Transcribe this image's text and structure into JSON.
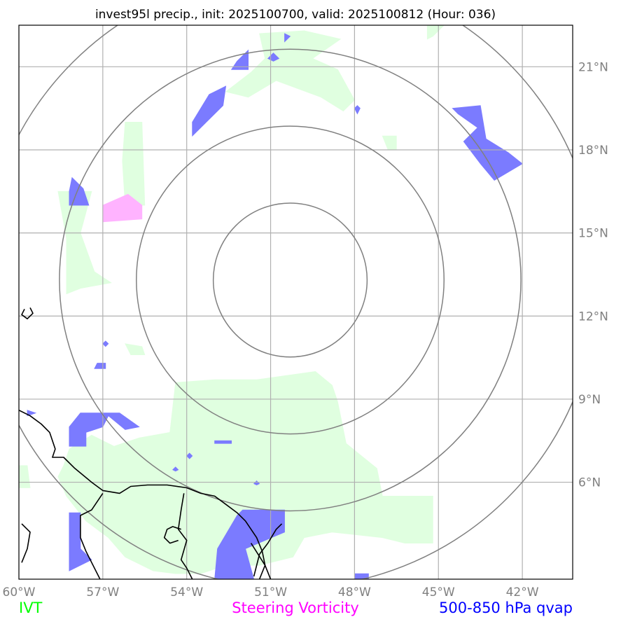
{
  "chart_data": {
    "type": "map",
    "title": "invest95l precip., init: 2025100700, valid: 2025100812 (Hour: 036)",
    "lon_range": [
      -60.0,
      -40.2
    ],
    "lat_range": [
      2.5,
      22.5
    ],
    "lon_ticks": [
      {
        "value": -60,
        "label": "60°W"
      },
      {
        "value": -57,
        "label": "57°W"
      },
      {
        "value": -54,
        "label": "54°W"
      },
      {
        "value": -51,
        "label": "51°W"
      },
      {
        "value": -48,
        "label": "48°W"
      },
      {
        "value": -45,
        "label": "45°W"
      },
      {
        "value": -42,
        "label": "42°W"
      }
    ],
    "lat_ticks": [
      {
        "value": 6,
        "label": "6°N"
      },
      {
        "value": 9,
        "label": "9°N"
      },
      {
        "value": 12,
        "label": "12°N"
      },
      {
        "value": 15,
        "label": "15°N"
      },
      {
        "value": 18,
        "label": "18°N"
      },
      {
        "value": 21,
        "label": "21°N"
      }
    ],
    "grid": true,
    "range_rings": {
      "center_lon": -50.3,
      "center_lat": 13.3,
      "radii_deg": [
        2.75,
        5.5,
        8.25,
        11.0
      ]
    },
    "legend": [
      {
        "label": "IVT",
        "color": "#00ff00"
      },
      {
        "label": "Steering Vorticity",
        "color": "#ff00ff"
      },
      {
        "label": "500-850 hPa qvap",
        "color": "#0000ff"
      }
    ],
    "fields": {
      "ivt": {
        "color": "#e0ffe0",
        "polygons": [
          [
            [
              -51.4,
              22.2
            ],
            [
              -49.8,
              22.3
            ],
            [
              -48.5,
              22.0
            ],
            [
              -49.5,
              21.3
            ],
            [
              -48.6,
              20.9
            ],
            [
              -48.0,
              19.8
            ],
            [
              -48.4,
              19.4
            ],
            [
              -49.2,
              19.9
            ],
            [
              -50.8,
              20.5
            ],
            [
              -51.8,
              19.9
            ],
            [
              -52.6,
              20.1
            ],
            [
              -51.7,
              20.8
            ],
            [
              -51.2,
              21.3
            ]
          ],
          [
            [
              -47.0,
              18.5
            ],
            [
              -46.8,
              18.0
            ],
            [
              -46.5,
              18.0
            ],
            [
              -46.5,
              18.5
            ]
          ],
          [
            [
              -45.4,
              22.5
            ],
            [
              -44.8,
              22.5
            ],
            [
              -45.2,
              22.1
            ],
            [
              -45.4,
              22.0
            ]
          ],
          [
            [
              -56.2,
              19.0
            ],
            [
              -55.6,
              19.0
            ],
            [
              -55.5,
              16.0
            ],
            [
              -56.2,
              16.0
            ],
            [
              -56.3,
              17.6
            ]
          ],
          [
            [
              -58.6,
              16.5
            ],
            [
              -57.4,
              16.5
            ],
            [
              -57.8,
              15.0
            ],
            [
              -57.3,
              13.6
            ],
            [
              -56.7,
              13.2
            ],
            [
              -57.8,
              13.0
            ],
            [
              -58.3,
              12.8
            ],
            [
              -58.3,
              14.8
            ]
          ],
          [
            [
              -56.2,
              11.0
            ],
            [
              -55.6,
              10.9
            ],
            [
              -55.5,
              10.6
            ],
            [
              -56.0,
              10.6
            ]
          ],
          [
            [
              -54.4,
              9.6
            ],
            [
              -53.0,
              9.7
            ],
            [
              -51.5,
              9.7
            ],
            [
              -49.4,
              10.0
            ],
            [
              -48.8,
              9.5
            ],
            [
              -48.6,
              8.9
            ],
            [
              -48.3,
              7.4
            ],
            [
              -47.2,
              6.5
            ],
            [
              -47.0,
              5.5
            ],
            [
              -45.2,
              5.5
            ],
            [
              -45.2,
              3.8
            ],
            [
              -46.2,
              3.8
            ],
            [
              -47.0,
              4.0
            ],
            [
              -48.8,
              4.2
            ],
            [
              -49.8,
              4.0
            ],
            [
              -50.2,
              3.3
            ],
            [
              -51.4,
              3.0
            ],
            [
              -52.6,
              3.0
            ],
            [
              -53.5,
              2.7
            ],
            [
              -54.4,
              2.7
            ],
            [
              -55.2,
              2.8
            ],
            [
              -56.2,
              3.3
            ],
            [
              -56.8,
              4.0
            ],
            [
              -57.6,
              4.6
            ],
            [
              -58.3,
              5.5
            ],
            [
              -58.6,
              6.2
            ],
            [
              -58.4,
              6.6
            ],
            [
              -58.2,
              7.2
            ],
            [
              -57.4,
              7.7
            ],
            [
              -56.6,
              7.3
            ],
            [
              -55.7,
              7.6
            ],
            [
              -54.6,
              7.8
            ]
          ],
          [
            [
              -60.0,
              6.6
            ],
            [
              -59.7,
              6.6
            ],
            [
              -59.6,
              5.8
            ],
            [
              -60.0,
              5.8
            ]
          ],
          [
            [
              -40.2,
              4.2
            ],
            [
              -40.0,
              4.2
            ],
            [
              -40.0,
              3.0
            ],
            [
              -40.2,
              3.0
            ]
          ]
        ]
      },
      "vorticity": {
        "color": "#ffb3ff",
        "polygons": [
          [
            [
              -57.0,
              16.0
            ],
            [
              -56.1,
              16.4
            ],
            [
              -55.6,
              16.0
            ],
            [
              -55.6,
              15.5
            ],
            [
              -57.0,
              15.4
            ]
          ]
        ]
      },
      "qvap": {
        "color": "#7b7bff",
        "polygons": [
          [
            [
              -50.5,
              22.2
            ],
            [
              -50.3,
              22.1
            ],
            [
              -50.5,
              21.9
            ]
          ],
          [
            [
              -50.9,
              21.5
            ],
            [
              -50.7,
              21.3
            ],
            [
              -50.9,
              21.2
            ],
            [
              -51.1,
              21.3
            ]
          ],
          [
            [
              -51.8,
              21.6
            ],
            [
              -51.8,
              20.9
            ],
            [
              -52.4,
              20.9
            ],
            [
              -52.2,
              21.2
            ]
          ],
          [
            [
              -53.2,
              20.0
            ],
            [
              -52.6,
              20.3
            ],
            [
              -52.7,
              19.6
            ],
            [
              -53.8,
              18.5
            ],
            [
              -53.8,
              19.0
            ]
          ],
          [
            [
              -47.9,
              19.6
            ],
            [
              -47.8,
              19.5
            ],
            [
              -47.9,
              19.3
            ],
            [
              -48.0,
              19.5
            ]
          ],
          [
            [
              -44.5,
              19.5
            ],
            [
              -43.5,
              19.6
            ],
            [
              -43.3,
              18.4
            ],
            [
              -42.5,
              17.9
            ],
            [
              -42.0,
              17.5
            ],
            [
              -43.0,
              16.9
            ],
            [
              -43.5,
              17.5
            ],
            [
              -44.1,
              18.3
            ],
            [
              -43.6,
              18.8
            ],
            [
              -44.3,
              19.3
            ]
          ],
          [
            [
              -58.1,
              17.0
            ],
            [
              -57.7,
              16.6
            ],
            [
              -57.5,
              16.0
            ],
            [
              -58.2,
              16.0
            ],
            [
              -58.2,
              16.5
            ]
          ],
          [
            [
              -57.2,
              10.3
            ],
            [
              -56.9,
              10.3
            ],
            [
              -56.9,
              10.1
            ],
            [
              -57.3,
              10.1
            ]
          ],
          [
            [
              -56.9,
              11.1
            ],
            [
              -56.8,
              11.0
            ],
            [
              -56.9,
              10.9
            ],
            [
              -57.0,
              11.0
            ]
          ],
          [
            [
              -59.7,
              8.6
            ],
            [
              -59.4,
              8.5
            ],
            [
              -59.7,
              8.4
            ]
          ],
          [
            [
              -57.8,
              8.5
            ],
            [
              -56.4,
              8.5
            ],
            [
              -55.7,
              8.0
            ],
            [
              -56.2,
              7.9
            ],
            [
              -56.8,
              8.4
            ],
            [
              -57.0,
              8.0
            ],
            [
              -57.6,
              7.8
            ],
            [
              -57.6,
              7.3
            ],
            [
              -58.2,
              7.3
            ],
            [
              -58.2,
              8.0
            ]
          ],
          [
            [
              -53.0,
              7.5
            ],
            [
              -52.4,
              7.5
            ],
            [
              -52.4,
              7.4
            ],
            [
              -53.0,
              7.4
            ]
          ],
          [
            [
              -53.9,
              7.05
            ],
            [
              -53.8,
              6.95
            ],
            [
              -53.9,
              6.85
            ],
            [
              -54.0,
              6.95
            ]
          ],
          [
            [
              -54.4,
              6.55
            ],
            [
              -54.3,
              6.45
            ],
            [
              -54.4,
              6.4
            ],
            [
              -54.5,
              6.45
            ]
          ],
          [
            [
              -51.5,
              6.05
            ],
            [
              -51.4,
              5.95
            ],
            [
              -51.5,
              5.9
            ],
            [
              -51.6,
              5.95
            ]
          ],
          [
            [
              -51.9,
              3.6
            ],
            [
              -50.5,
              4.2
            ],
            [
              -50.5,
              5.0
            ],
            [
              -52.0,
              5.0
            ],
            [
              -52.2,
              4.8
            ],
            [
              -52.9,
              3.6
            ],
            [
              -53.0,
              2.5
            ],
            [
              -51.6,
              2.5
            ]
          ],
          [
            [
              -58.2,
              4.9
            ],
            [
              -57.8,
              4.9
            ],
            [
              -57.8,
              3.6
            ],
            [
              -57.4,
              3.2
            ],
            [
              -58.2,
              2.8
            ]
          ],
          [
            [
              -48.0,
              2.7
            ],
            [
              -47.5,
              2.7
            ],
            [
              -47.5,
              2.5
            ],
            [
              -48.0,
              2.5
            ]
          ]
        ]
      }
    },
    "coastlines": [
      [
        [
          -60.0,
          8.6
        ],
        [
          -59.6,
          8.4
        ],
        [
          -59.2,
          8.1
        ],
        [
          -58.9,
          7.8
        ],
        [
          -58.7,
          7.2
        ],
        [
          -58.8,
          6.9
        ],
        [
          -58.4,
          6.9
        ],
        [
          -58.0,
          6.5
        ],
        [
          -57.4,
          6.0
        ],
        [
          -57.0,
          5.7
        ],
        [
          -56.4,
          5.6
        ],
        [
          -56.0,
          5.85
        ],
        [
          -55.4,
          5.9
        ],
        [
          -54.7,
          5.9
        ],
        [
          -54.0,
          5.8
        ],
        [
          -53.5,
          5.6
        ],
        [
          -53.0,
          5.5
        ],
        [
          -52.6,
          5.2
        ],
        [
          -52.2,
          4.9
        ],
        [
          -51.9,
          4.6
        ],
        [
          -51.7,
          4.3
        ],
        [
          -51.5,
          4.0
        ],
        [
          -51.3,
          3.5
        ],
        [
          -51.2,
          3.0
        ],
        [
          -51.0,
          2.5
        ]
      ],
      [
        [
          -59.9,
          4.5
        ],
        [
          -59.6,
          4.2
        ],
        [
          -59.7,
          3.6
        ],
        [
          -59.9,
          3.1
        ]
      ],
      [
        [
          -57.0,
          5.6
        ],
        [
          -57.4,
          5.0
        ],
        [
          -57.8,
          4.8
        ],
        [
          -57.8,
          4.0
        ],
        [
          -57.6,
          3.5
        ],
        [
          -57.1,
          2.5
        ]
      ],
      [
        [
          -54.1,
          5.6
        ],
        [
          -54.2,
          5.0
        ],
        [
          -54.3,
          4.3
        ],
        [
          -54.0,
          3.9
        ],
        [
          -54.2,
          3.2
        ],
        [
          -54.0,
          2.9
        ],
        [
          -53.8,
          2.5
        ]
      ],
      [
        [
          -54.2,
          4.3
        ],
        [
          -54.5,
          4.4
        ],
        [
          -54.7,
          4.3
        ],
        [
          -54.8,
          4.0
        ],
        [
          -54.6,
          3.8
        ],
        [
          -54.3,
          3.9
        ]
      ],
      [
        [
          -59.6,
          12.3
        ],
        [
          -59.5,
          12.1
        ],
        [
          -59.7,
          11.9
        ],
        [
          -59.9,
          12.05
        ],
        [
          -59.8,
          12.25
        ]
      ],
      [
        [
          -51.7,
          3.8
        ],
        [
          -51.2,
          3.0
        ],
        [
          -51.4,
          2.5
        ]
      ],
      [
        [
          -51.6,
          2.6
        ],
        [
          -51.4,
          3.4
        ],
        [
          -51.1,
          3.8
        ],
        [
          -50.8,
          4.3
        ],
        [
          -50.6,
          4.5
        ]
      ]
    ]
  }
}
